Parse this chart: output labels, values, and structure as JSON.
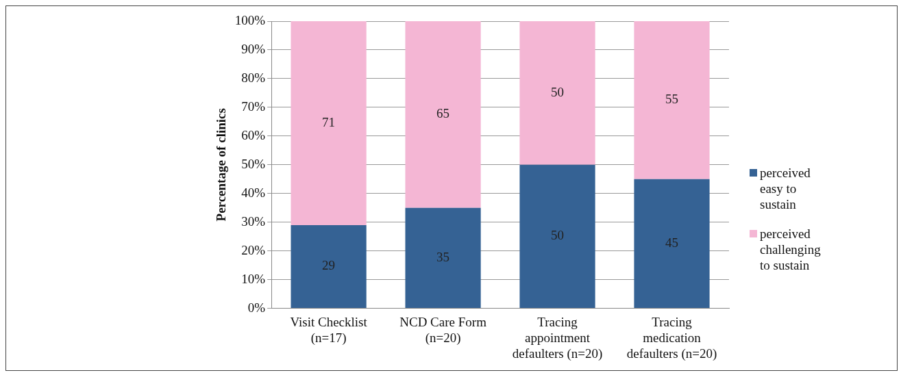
{
  "chart_data": {
    "type": "bar",
    "stacked": true,
    "ylabel": "Percentage of clinics",
    "categories": [
      "Visit Checklist\n(n=17)",
      "NCD Care Form\n(n=20)",
      "Tracing\nappointment\ndefaulters (n=20)",
      "Tracing\nmedication\ndefaulters (n=20)"
    ],
    "series": [
      {
        "name": "perceived\neasy to\nsustain",
        "color": "#356294",
        "values": [
          29,
          35,
          50,
          45
        ]
      },
      {
        "name": "perceived\nchallenging\nto sustain",
        "color": "#f4b6d4",
        "values": [
          71,
          65,
          50,
          55
        ]
      }
    ],
    "ylim": [
      0,
      100
    ],
    "yticks": [
      {
        "value": 0,
        "label": "0%"
      },
      {
        "value": 10,
        "label": "10%"
      },
      {
        "value": 20,
        "label": "20%"
      },
      {
        "value": 30,
        "label": "30%"
      },
      {
        "value": 40,
        "label": "40%"
      },
      {
        "value": 50,
        "label": "50%"
      },
      {
        "value": 60,
        "label": "60%"
      },
      {
        "value": 70,
        "label": "70%"
      },
      {
        "value": 80,
        "label": "80%"
      },
      {
        "value": 90,
        "label": "90%"
      },
      {
        "value": 100,
        "label": "100%"
      }
    ],
    "grid": "y",
    "data_labels": true,
    "legend": "right"
  }
}
